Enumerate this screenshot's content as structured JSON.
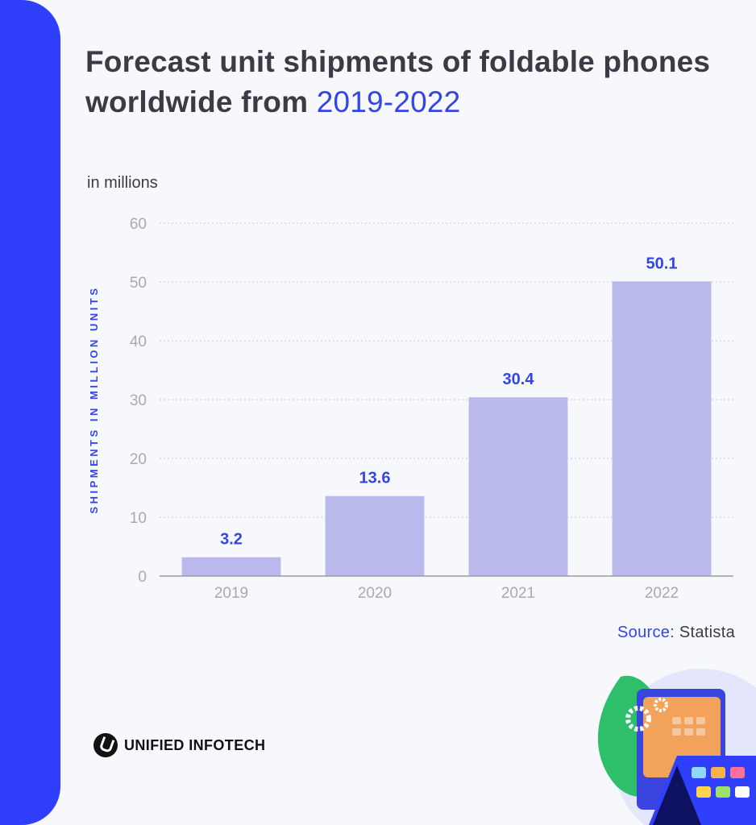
{
  "header": {
    "title_main": "Forecast unit shipments of foldable phones worldwide from ",
    "title_accent": "2019-2022"
  },
  "units_note": "in millions",
  "source": {
    "label": "Source:",
    "name": "Statista"
  },
  "brand": {
    "name": "UNIFIED INFOTECH"
  },
  "colors": {
    "accent": "#3345e6",
    "bar": "#b9b9ec",
    "side_bar": "#2f3ffb",
    "text": "#3b3b45"
  },
  "chart_data": {
    "type": "bar",
    "categories": [
      "2019",
      "2020",
      "2021",
      "2022"
    ],
    "values": [
      3.2,
      13.6,
      30.4,
      50.1
    ],
    "data_labels": [
      "3.2",
      "13.6",
      "30.4",
      "50.1"
    ],
    "ylabel": "SHIPMENTS IN MILLION UNITS",
    "xlabel": "",
    "ylim": [
      0,
      60
    ],
    "yticks": [
      0,
      10,
      20,
      30,
      40,
      50,
      60
    ],
    "grid": true,
    "legend": "none"
  }
}
